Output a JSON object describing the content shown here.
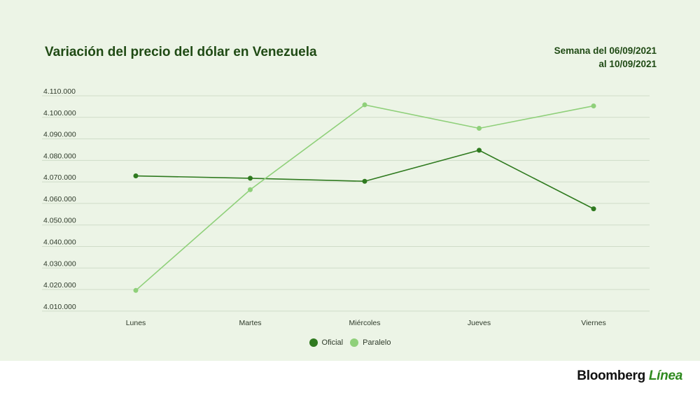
{
  "title": "Variación del precio del dólar en Venezuela",
  "subtitle_lines": [
    "Semana del 06/09/2021",
    "al 10/09/2021"
  ],
  "brand": {
    "name": "Bloomberg",
    "accent": "Línea"
  },
  "colors": {
    "oficial": "#2f7a1f",
    "paralelo": "#8fd07a",
    "panel": "#ecf4e6",
    "grid": "#cfdcc8",
    "text": "#1f4a14"
  },
  "chart_data": {
    "type": "line",
    "categories": [
      "Lunes",
      "Martes",
      "Miércoles",
      "Jueves",
      "Viernes"
    ],
    "series": [
      {
        "name": "Oficial",
        "values": [
          4072800,
          4071700,
          4070300,
          4084700,
          4057500
        ]
      },
      {
        "name": "Paralelo",
        "values": [
          4019600,
          4066400,
          4105800,
          4094900,
          4105300
        ]
      }
    ],
    "yticks": [
      "4.010.000",
      "4.020.000",
      "4.030.000",
      "4.040.000",
      "4.050.000",
      "4.060.000",
      "4.070.000",
      "4.080.000",
      "4.090.000",
      "4.100.000",
      "4.110.000"
    ],
    "ylim": [
      4008000,
      4110000
    ],
    "grid": true,
    "legend_position": "bottom-center"
  }
}
